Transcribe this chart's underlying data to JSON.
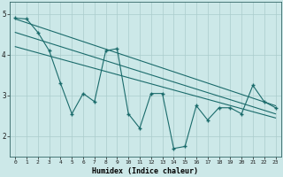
{
  "xlabel": "Humidex (Indice chaleur)",
  "bg_color": "#cce8e8",
  "grid_color": "#aacccc",
  "line_color": "#1a6b6b",
  "xlim": [
    -0.5,
    23.5
  ],
  "ylim": [
    1.5,
    5.3
  ],
  "zigzag_x": [
    0,
    1,
    2,
    3,
    4,
    5,
    6,
    7,
    8,
    9,
    10,
    11,
    12,
    13,
    14,
    15,
    16,
    17,
    18,
    19,
    20,
    21,
    22,
    23
  ],
  "zigzag_y": [
    4.9,
    4.88,
    4.55,
    4.1,
    3.3,
    2.55,
    3.05,
    2.85,
    4.1,
    4.15,
    2.55,
    2.2,
    3.05,
    3.05,
    1.7,
    1.75,
    2.75,
    2.4,
    2.7,
    2.7,
    2.55,
    3.25,
    2.85,
    2.7
  ],
  "line1_x": [
    0,
    23
  ],
  "line1_y": [
    4.88,
    2.75
  ],
  "line2_x": [
    0,
    23
  ],
  "line2_y": [
    4.55,
    2.55
  ],
  "line3_x": [
    0,
    23
  ],
  "line3_y": [
    4.2,
    2.45
  ],
  "yticks": [
    2,
    3,
    4,
    5
  ],
  "xticks": [
    0,
    1,
    2,
    3,
    4,
    5,
    6,
    7,
    8,
    9,
    10,
    11,
    12,
    13,
    14,
    15,
    16,
    17,
    18,
    19,
    20,
    21,
    22,
    23
  ]
}
